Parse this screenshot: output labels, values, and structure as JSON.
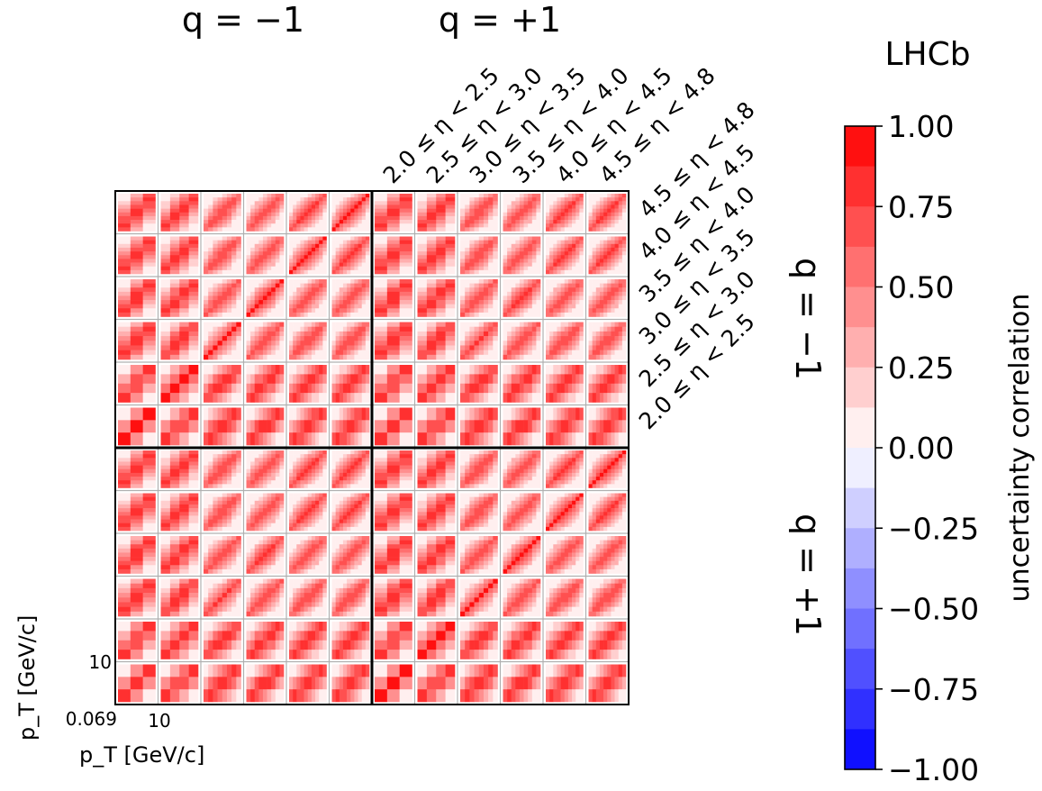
{
  "brand": "LHCb",
  "charge_columns": [
    "q = −1",
    "q = +1"
  ],
  "charge_rows": [
    "q = −1",
    "q = +1"
  ],
  "eta_bins": [
    "2.0 ≤ η < 2.5",
    "2.5 ≤ η < 3.0",
    "3.0 ≤ η < 3.5",
    "3.5 ≤ η < 4.0",
    "4.0 ≤ η < 4.5",
    "4.5 ≤ η < 4.8"
  ],
  "xlabel": "p_T [GeV/c]",
  "ylabel": "p_T [GeV/c]",
  "x_ticks": [
    "10"
  ],
  "y_ticks": [
    "10"
  ],
  "corner_tick": "0.069",
  "colorbar": {
    "label": "uncertainty correlation",
    "ticks": [
      "1.00",
      "0.75",
      "0.50",
      "0.25",
      "0.00",
      "−0.25",
      "−0.50",
      "−0.75",
      "−1.00"
    ],
    "tick_values": [
      1.0,
      0.75,
      0.5,
      0.25,
      0.0,
      -0.25,
      -0.5,
      -0.75,
      -1.0
    ],
    "levels": 16,
    "min": -1.0,
    "max": 1.0,
    "low_color": "#0000ff",
    "mid_color": "#ffffff",
    "high_color": "#ff0000"
  },
  "chart_data": {
    "type": "heatmap",
    "xlabel": "p_T [GeV/c]",
    "ylabel": "p_T [GeV/c]",
    "outer_columns": [
      "q = −1",
      "q = +1"
    ],
    "outer_rows": [
      "q = −1",
      "q = +1"
    ],
    "eta_bins": [
      "2.0 ≤ η < 2.5",
      "2.5 ≤ η < 3.0",
      "3.0 ≤ η < 3.5",
      "3.5 ≤ η < 4.0",
      "4.0 ≤ η < 4.5",
      "4.5 ≤ η < 4.8"
    ],
    "pt_bins_per_eta": [
      3,
      4,
      8,
      9,
      10,
      10
    ],
    "value_range": [
      -1.0,
      1.0
    ],
    "diagonal_value": 1.0,
    "typical_offdiagonal_range": [
      0.1,
      0.9
    ],
    "colorscale": "bwr"
  }
}
